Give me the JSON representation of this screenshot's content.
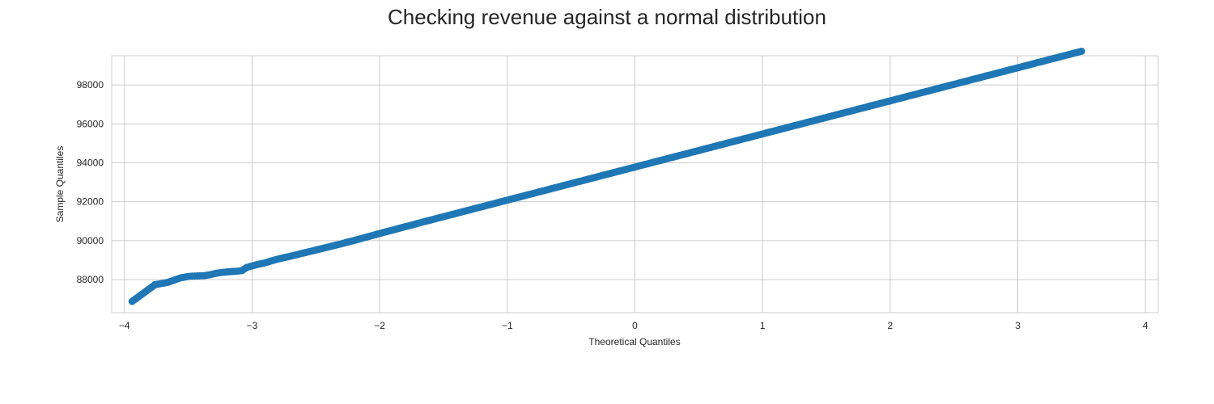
{
  "chart_data": {
    "type": "scatter",
    "title": "Checking revenue against a normal distribution",
    "xlabel": "Theoretical Quantiles",
    "ylabel": "Sample Quantiles",
    "xlim": [
      -4.1,
      4.1
    ],
    "ylim": [
      86300,
      99500
    ],
    "xticks": [
      -4,
      -3,
      -2,
      -1,
      0,
      1,
      2,
      3,
      4
    ],
    "xtick_labels": [
      "−4",
      "−3",
      "−2",
      "−1",
      "0",
      "1",
      "2",
      "3",
      "4"
    ],
    "yticks": [
      88000,
      90000,
      92000,
      94000,
      96000,
      98000
    ],
    "ytick_labels": [
      "88000",
      "90000",
      "92000",
      "94000",
      "96000",
      "98000"
    ],
    "grid": true,
    "marker_color": "#1f77b4",
    "series": [
      {
        "points": [
          [
            -3.94,
            86880
          ],
          [
            -3.76,
            87740
          ],
          [
            -3.66,
            87860
          ],
          [
            -3.56,
            88090
          ],
          [
            -3.49,
            88170
          ],
          [
            -3.43,
            88190
          ],
          [
            -3.38,
            88200
          ],
          [
            -3.33,
            88250
          ],
          [
            -3.28,
            88330
          ],
          [
            -3.22,
            88380
          ],
          [
            -3.17,
            88410
          ],
          [
            -3.12,
            88430
          ],
          [
            -3.08,
            88460
          ],
          [
            -3.04,
            88630
          ],
          [
            -3.0,
            88700
          ],
          [
            -2.95,
            88790
          ],
          [
            -2.9,
            88860
          ],
          [
            -2.85,
            88960
          ],
          [
            -2.8,
            89050
          ],
          [
            -2.75,
            89130
          ],
          [
            -2.7,
            89200
          ],
          [
            -2.65,
            89280
          ],
          [
            -2.6,
            89360
          ],
          [
            -2.55,
            89440
          ],
          [
            -2.5,
            89520
          ],
          [
            -2.45,
            89600
          ],
          [
            -2.4,
            89680
          ],
          [
            -2.35,
            89760
          ],
          [
            -2.3,
            89840
          ],
          [
            -2.25,
            89930
          ],
          [
            -2.2,
            90010
          ],
          [
            -2.15,
            90100
          ],
          [
            -2.1,
            90190
          ],
          [
            -2.05,
            90280
          ],
          [
            -2.0,
            90370
          ],
          [
            -1.95,
            90460
          ],
          [
            -1.9,
            90540
          ],
          [
            -1.85,
            90630
          ],
          [
            -1.8,
            90720
          ],
          [
            -1.75,
            90800
          ],
          [
            -1.7,
            90890
          ],
          [
            -1.65,
            90980
          ],
          [
            -1.6,
            91060
          ],
          [
            -1.55,
            91150
          ],
          [
            -1.5,
            91230
          ],
          [
            -1.45,
            91320
          ],
          [
            -1.4,
            91400
          ],
          [
            -1.35,
            91490
          ],
          [
            -1.3,
            91570
          ],
          [
            -1.25,
            91660
          ],
          [
            -1.2,
            91740
          ],
          [
            -1.15,
            91830
          ],
          [
            -1.1,
            91910
          ],
          [
            -1.05,
            92000
          ],
          [
            -1.0,
            92080
          ],
          [
            -0.95,
            92170
          ],
          [
            -0.9,
            92250
          ],
          [
            -0.85,
            92340
          ],
          [
            -0.8,
            92420
          ],
          [
            -0.75,
            92510
          ],
          [
            -0.7,
            92590
          ],
          [
            -0.65,
            92680
          ],
          [
            -0.6,
            92760
          ],
          [
            -0.55,
            92850
          ],
          [
            -0.5,
            92930
          ],
          [
            -0.45,
            93020
          ],
          [
            -0.4,
            93100
          ],
          [
            -0.35,
            93190
          ],
          [
            -0.3,
            93270
          ],
          [
            -0.25,
            93360
          ],
          [
            -0.2,
            93440
          ],
          [
            -0.15,
            93530
          ],
          [
            -0.1,
            93610
          ],
          [
            -0.05,
            93700
          ],
          [
            0.0,
            93780
          ],
          [
            0.05,
            93870
          ],
          [
            0.1,
            93950
          ],
          [
            0.15,
            94040
          ],
          [
            0.2,
            94120
          ],
          [
            0.25,
            94210
          ],
          [
            0.3,
            94290
          ],
          [
            0.35,
            94380
          ],
          [
            0.4,
            94460
          ],
          [
            0.45,
            94550
          ],
          [
            0.5,
            94630
          ],
          [
            0.55,
            94720
          ],
          [
            0.6,
            94800
          ],
          [
            0.65,
            94890
          ],
          [
            0.7,
            94970
          ],
          [
            0.75,
            95060
          ],
          [
            0.8,
            95140
          ],
          [
            0.85,
            95230
          ],
          [
            0.9,
            95310
          ],
          [
            0.95,
            95400
          ],
          [
            1.0,
            95480
          ],
          [
            1.05,
            95570
          ],
          [
            1.1,
            95650
          ],
          [
            1.15,
            95740
          ],
          [
            1.2,
            95820
          ],
          [
            1.25,
            95910
          ],
          [
            1.3,
            95990
          ],
          [
            1.35,
            96080
          ],
          [
            1.4,
            96160
          ],
          [
            1.45,
            96250
          ],
          [
            1.5,
            96330
          ],
          [
            1.55,
            96420
          ],
          [
            1.6,
            96500
          ],
          [
            1.65,
            96590
          ],
          [
            1.7,
            96670
          ],
          [
            1.75,
            96760
          ],
          [
            1.8,
            96840
          ],
          [
            1.85,
            96930
          ],
          [
            1.9,
            97010
          ],
          [
            1.95,
            97100
          ],
          [
            2.0,
            97180
          ],
          [
            2.05,
            97270
          ],
          [
            2.1,
            97350
          ],
          [
            2.15,
            97440
          ],
          [
            2.2,
            97520
          ],
          [
            2.25,
            97610
          ],
          [
            2.3,
            97690
          ],
          [
            2.35,
            97780
          ],
          [
            2.4,
            97860
          ],
          [
            2.45,
            97950
          ],
          [
            2.5,
            98030
          ],
          [
            2.55,
            98120
          ],
          [
            2.6,
            98200
          ],
          [
            2.65,
            98290
          ],
          [
            2.7,
            98370
          ],
          [
            2.75,
            98460
          ],
          [
            2.8,
            98540
          ],
          [
            2.85,
            98630
          ],
          [
            2.9,
            98710
          ],
          [
            2.95,
            98800
          ],
          [
            3.0,
            98880
          ],
          [
            3.05,
            98970
          ],
          [
            3.1,
            99050
          ],
          [
            3.15,
            99140
          ],
          [
            3.2,
            99220
          ],
          [
            3.25,
            99310
          ],
          [
            3.3,
            99390
          ],
          [
            3.35,
            99480
          ],
          [
            3.4,
            99560
          ],
          [
            3.45,
            99650
          ],
          [
            3.5,
            99730
          ]
        ]
      }
    ]
  }
}
